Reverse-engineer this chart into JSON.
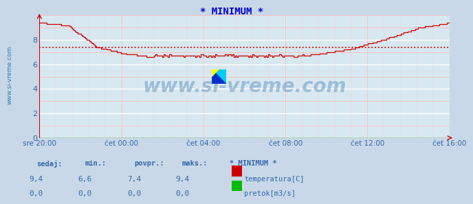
{
  "title": "* MINIMUM *",
  "title_color": "#0000cc",
  "bg_color": "#c8d8e8",
  "plot_bg_color": "#d8e8f0",
  "grid_color_major": "#ffffff",
  "grid_color_minor": "#ffbbbb",
  "ylim": [
    0,
    10
  ],
  "yticks": [
    0,
    2,
    4,
    6,
    8
  ],
  "watermark": "www.si-vreme.com",
  "watermark_color": "#5588bb",
  "watermark_alpha": 0.45,
  "sidebar_text": "www.si-vreme.com",
  "sidebar_color": "#3377aa",
  "x_tick_labels": [
    "sre 20:00",
    "čet 00:00",
    "čet 04:00",
    "čet 08:00",
    "čet 12:00",
    "čet 16:00"
  ],
  "x_tick_positions": [
    0.0,
    0.2,
    0.4,
    0.6,
    0.8,
    1.0
  ],
  "avg_value": 7.4,
  "avg_line_color": "#dd0000",
  "line_color": "#cc0000",
  "zero_line_color": "#00aa00",
  "arrow_color": "#cc0000",
  "legend_labels": [
    "temperatura[C]",
    "pretok[m3/s]"
  ],
  "legend_colors": [
    "#cc0000",
    "#00bb00"
  ],
  "table_headers": [
    "sedaj:",
    "min.:",
    "povpr.:",
    "maks.:",
    "* MINIMUM *"
  ],
  "table_row1": [
    "9,4",
    "6,6",
    "7,4",
    "9,4",
    ""
  ],
  "table_row2": [
    "0,0",
    "0,0",
    "0,0",
    "0,0",
    ""
  ],
  "table_color": "#3366aa",
  "n_points": 288,
  "logo_yellow": "#ffff00",
  "logo_cyan": "#00ccff",
  "logo_blue": "#0033cc"
}
